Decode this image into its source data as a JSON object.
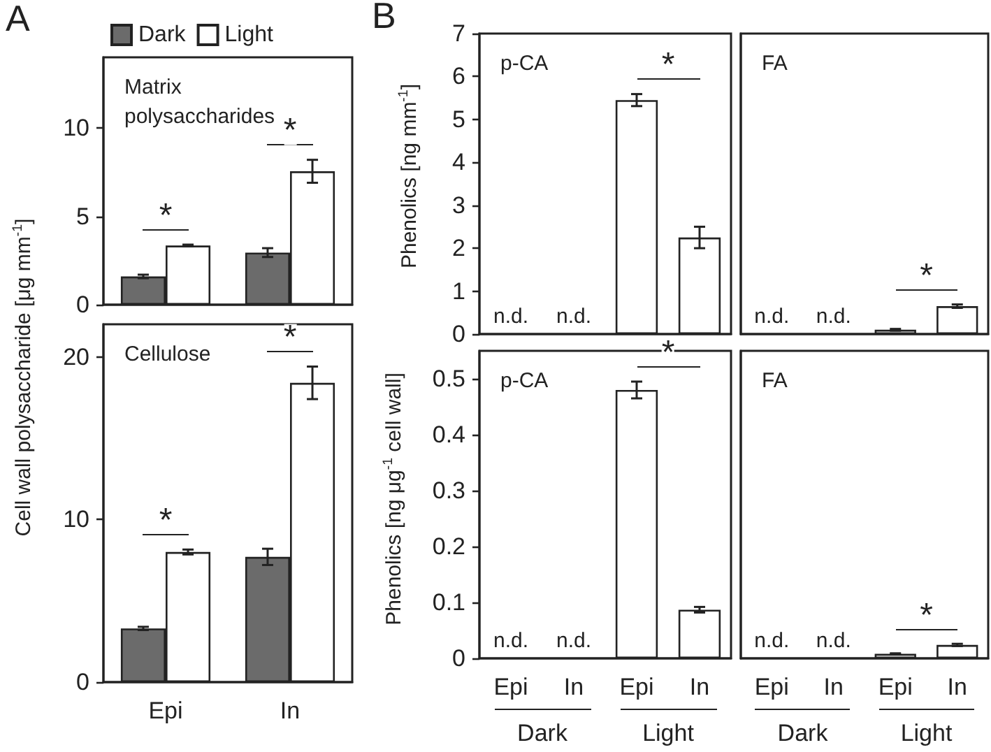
{
  "chart_data": [
    {
      "type": "bar",
      "title": "Matrix polysaccharides",
      "ylabel": "Cell wall polysaccharide [μg mm$^{-1}$]",
      "categories": [
        "Epi",
        "In"
      ],
      "tick_labels": "y",
      "legend": "top",
      "ylim": [
        0,
        14
      ],
      "yticks": [
        0,
        5,
        10
      ],
      "series": [
        {
          "name": "Dark",
          "color": "#6b6b6b",
          "values": [
            1.6,
            2.95
          ],
          "errors": [
            0.1,
            0.25
          ]
        },
        {
          "name": "Light",
          "color": "#ffffff",
          "values": [
            3.35,
            7.55
          ],
          "errors": [
            0.05,
            0.65
          ]
        }
      ],
      "annotations": [
        "A",
        "*",
        "*"
      ]
    },
    {
      "type": "bar",
      "title": "Cellulose",
      "categories": [
        "Epi",
        "In"
      ],
      "ylim": [
        0,
        22
      ],
      "yticks": [
        0,
        10,
        20
      ],
      "series": [
        {
          "color": "#6b6b6b",
          "values": [
            3.3,
            7.7
          ],
          "errors": [
            0.1,
            0.5
          ]
        },
        {
          "color": "#ffffff",
          "values": [
            8.0,
            18.4
          ],
          "errors": [
            0.15,
            1.0
          ]
        }
      ],
      "annotations": [
        "*",
        "*"
      ]
    },
    {
      "type": "bar",
      "title": "p-CA",
      "ylabel": "Phenolics [ng mm$^{-1}$]",
      "categories": [
        "Epi",
        "In",
        "Epi",
        "In"
      ],
      "tick_labels": "y",
      "ylim": [
        0,
        7
      ],
      "yticks": [
        0,
        1,
        2,
        3,
        4,
        5,
        6,
        7
      ],
      "series": [
        {
          "color": "#ffffff",
          "values": [
            null,
            null,
            5.45,
            2.25
          ],
          "errors": [
            null,
            null,
            0.14,
            0.25
          ]
        }
      ],
      "annotations": [
        "B",
        "n.d.",
        "n.d.",
        "*"
      ]
    },
    {
      "type": "bar",
      "title": "FA",
      "categories": [
        "Epi",
        "In",
        "Epi",
        "In"
      ],
      "tick_labels": false,
      "ylim": [
        0,
        7
      ],
      "series": [
        {
          "color": "#ffffff",
          "values": [
            null,
            null,
            0.1,
            0.65
          ],
          "errors": [
            null,
            null,
            0.02,
            0.04
          ]
        }
      ],
      "annotations": [
        "n.d.",
        "n.d.",
        "*"
      ]
    },
    {
      "type": "bar",
      "title": "p-CA",
      "ylabel": "Phenolics [ng μg$^{-1}$ cell wall]",
      "categories": [
        "Epi",
        "In",
        "Epi",
        "In"
      ],
      "ylim": [
        0,
        0.55
      ],
      "yticks": [
        0,
        0.1,
        0.2,
        0.3,
        0.4,
        0.5
      ],
      "series": [
        {
          "color": "#ffffff",
          "values": [
            null,
            null,
            0.48,
            0.087
          ],
          "errors": [
            null,
            null,
            0.015,
            0.005
          ]
        }
      ],
      "annotations": [
        "n.d.",
        "n.d.",
        "*",
        "Dark",
        "Light"
      ]
    },
    {
      "type": "bar",
      "title": "FA",
      "categories": [
        "Epi",
        "In",
        "Epi",
        "In"
      ],
      "tick_labels": "x",
      "ylim": [
        0,
        0.55
      ],
      "series": [
        {
          "color": "#ffffff",
          "values": [
            null,
            null,
            0.008,
            0.024
          ],
          "errors": [
            null,
            null,
            0.001,
            0.002
          ]
        }
      ],
      "annotations": [
        "n.d.",
        "n.d.",
        "*",
        "Dark",
        "Light"
      ]
    }
  ]
}
